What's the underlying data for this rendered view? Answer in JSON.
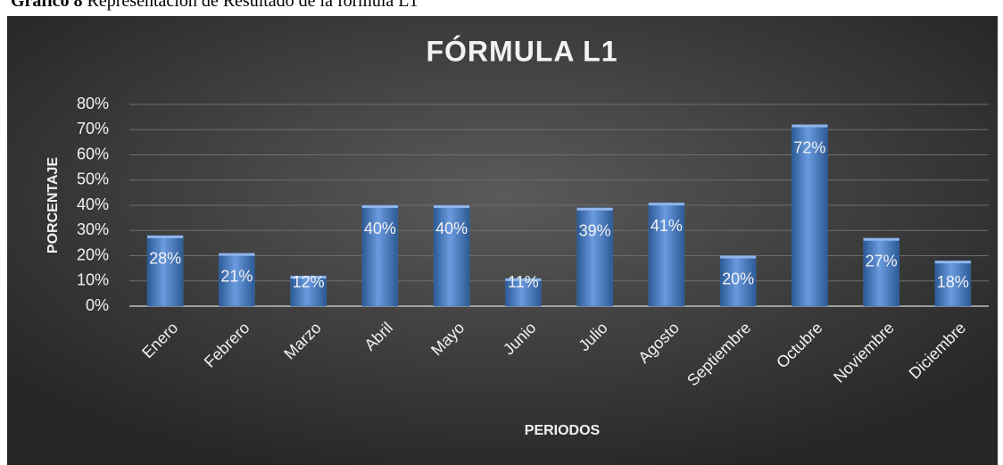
{
  "caption": {
    "label": "Gráfico 8",
    "text": "Representación de Resultado de la fórmula L1"
  },
  "chart_data": {
    "type": "bar",
    "title": "FÓRMULA L1",
    "x_label": "PERIODOS",
    "y_label": "PORCENTAJE",
    "categories": [
      "Enero",
      "Febrero",
      "Marzo",
      "Abril",
      "Mayo",
      "Junio",
      "Julio",
      "Agosto",
      "Septiembre",
      "Octubre",
      "Noviembre",
      "Diciembre"
    ],
    "values": [
      28,
      21,
      12,
      40,
      40,
      11,
      39,
      41,
      20,
      72,
      27,
      18
    ],
    "value_labels": [
      "28%",
      "21%",
      "12%",
      "40%",
      "40%",
      "11%",
      "39%",
      "41%",
      "20%",
      "72%",
      "27%",
      "18%"
    ],
    "color": "#4a7ebb",
    "ylim": [
      0,
      80
    ],
    "yticks": [
      {
        "value": 0,
        "label": "0%"
      },
      {
        "value": 10,
        "label": "10%"
      },
      {
        "value": 20,
        "label": "20%"
      },
      {
        "value": 30,
        "label": "30%"
      },
      {
        "value": 40,
        "label": "40%"
      },
      {
        "value": 50,
        "label": "50%"
      },
      {
        "value": 60,
        "label": "60%"
      },
      {
        "value": 70,
        "label": "70%"
      },
      {
        "value": 80,
        "label": "80%"
      }
    ],
    "grid": true
  }
}
